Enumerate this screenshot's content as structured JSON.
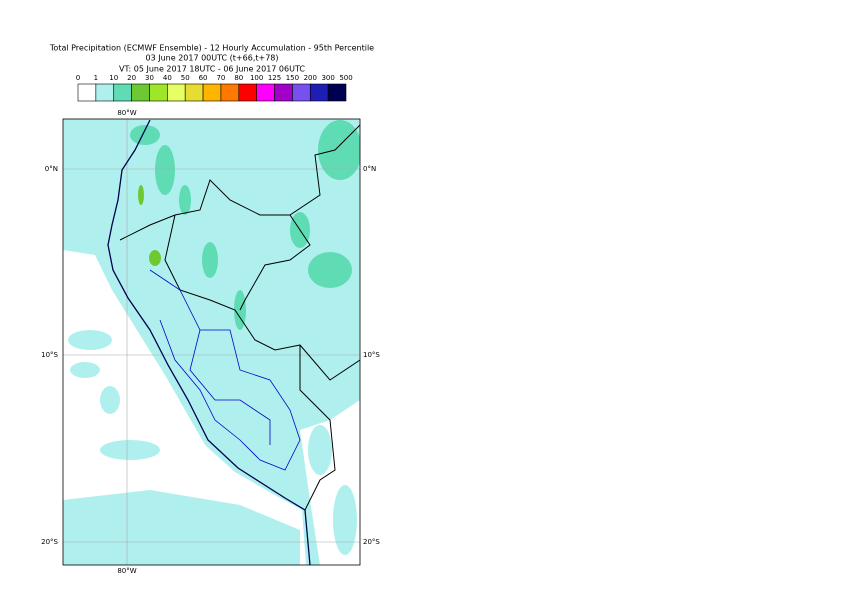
{
  "title": [
    "Total Precipitation (ECMWF Ensemble) - 12 Hourly Accumulation - 95th Percentile",
    "03 June 2017 00UTC (t+66,t+78)",
    "VT: 05 June 2017 18UTC - 06 June 2017 06UTC"
  ],
  "legend": {
    "labels": [
      0,
      1,
      10,
      20,
      30,
      40,
      50,
      60,
      70,
      80,
      100,
      125,
      150,
      200,
      300,
      500
    ],
    "colors": [
      "#ffffff",
      "#aff0ee",
      "#5fdcb4",
      "#6ec832",
      "#a0e628",
      "#e6ff64",
      "#e6dc32",
      "#ffb400",
      "#ff7800",
      "#ff0000",
      "#ff00ff",
      "#a000c8",
      "#7850f0",
      "#1e1eb4",
      "#000050"
    ]
  },
  "map": {
    "lon_labels": [
      "80°W"
    ],
    "lat_labels": [
      "0°N",
      "10°S",
      "20°S"
    ]
  }
}
